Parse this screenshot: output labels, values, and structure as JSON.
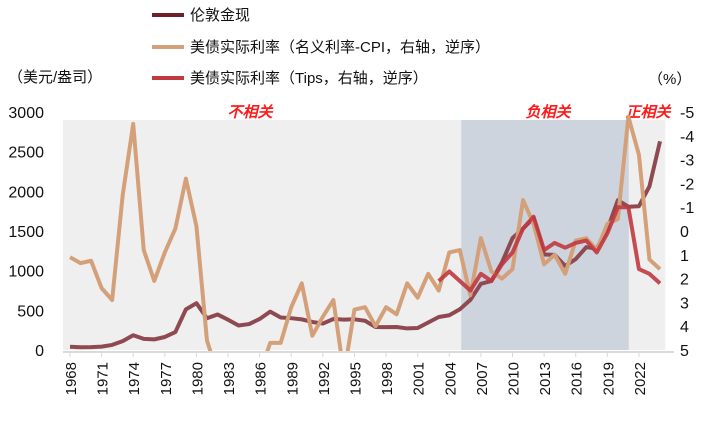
{
  "chart_data": {
    "type": "line",
    "legend": [
      {
        "name": "伦敦金现",
        "color": "#8e4a50"
      },
      {
        "name": "美债实际利率（名义利率-CPI，右轴，逆序）",
        "color": "#d4a07a"
      },
      {
        "name": "美债实际利率（Tips，右轴，逆序）",
        "color": "#c0393f"
      }
    ],
    "left_axis_label": "（美元/盎司）",
    "right_axis_label": "（%）",
    "left_ylim": [
      0,
      3000
    ],
    "left_ticks": [
      "0",
      "500",
      "1000",
      "1500",
      "2000",
      "2500",
      "3000"
    ],
    "right_ylim": [
      5,
      -5
    ],
    "right_ticks": [
      "-5",
      "-4",
      "-3",
      "-2",
      "-1",
      "0",
      "1",
      "2",
      "3",
      "4",
      "5"
    ],
    "x_start": 1968,
    "x_end": 2024,
    "x_ticks": [
      "1968",
      "1971",
      "1974",
      "1977",
      "1980",
      "1983",
      "1986",
      "1989",
      "1992",
      "1995",
      "1998",
      "2001",
      "2004",
      "2007",
      "2010",
      "2013",
      "2016",
      "2019",
      "2022"
    ],
    "regions": [
      {
        "label": "不相关",
        "from": 1968,
        "to": 2005.3,
        "color": "#efefef"
      },
      {
        "label": "负相关",
        "from": 2005.8,
        "to": 2021.3,
        "color": "#cdd4de"
      },
      {
        "label": "正相关",
        "from": 2021.7,
        "to": 2024.5,
        "color": "#efefef"
      }
    ],
    "series": [
      {
        "name": "伦敦金现",
        "axis": "left",
        "start": 1968,
        "values": [
          41,
          35,
          37,
          43,
          64,
          112,
          186,
          140,
          134,
          164,
          226,
          512,
          590,
          400,
          448,
          382,
          309,
          327,
          391,
          484,
          410,
          401,
          386,
          353,
          333,
          391,
          383,
          387,
          369,
          290,
          288,
          290,
          272,
          277,
          347,
          416,
          438,
          513,
          632,
          834,
          870,
          1104,
          1410,
          1531,
          1664,
          1204,
          1199,
          1060,
          1146,
          1296,
          1280,
          1517,
          1888,
          1806,
          1812,
          2063,
          2630
        ]
      },
      {
        "name": "美债实际利率（名义利率-CPI，右轴，逆序）",
        "axis": "right",
        "start": 1968,
        "values": [
          1.1,
          1.35,
          1.25,
          2.4,
          2.9,
          -1.5,
          -4.5,
          0.8,
          2.1,
          0.9,
          -0.1,
          -2.2,
          -0.2,
          4.6,
          6,
          6,
          6,
          6,
          6,
          4.7,
          4.7,
          3.2,
          2.2,
          4.4,
          3.6,
          2.9,
          6,
          3.3,
          3.2,
          4.0,
          3.2,
          3.5,
          2.2,
          2.8,
          1.8,
          2.5,
          0.9,
          0.8,
          2.7,
          0.3,
          1.7,
          2.0,
          1.6,
          -1.3,
          -0.3,
          1.4,
          1.0,
          1.8,
          0.4,
          0.3,
          0.8,
          -0.3,
          -0.5,
          -4.8,
          -3.2,
          1.2,
          1.6
        ]
      },
      {
        "name": "美债实际利率（Tips，右轴，逆序）",
        "axis": "right",
        "start": 2003,
        "values": [
          2.1,
          1.7,
          2.1,
          2.5,
          1.8,
          2.1,
          1.4,
          0.9,
          -0.1,
          -0.6,
          0.8,
          0.5,
          0.7,
          0.5,
          0.4,
          0.9,
          0.1,
          -1.0,
          -1.0,
          1.6,
          1.8,
          2.2
        ]
      }
    ]
  }
}
